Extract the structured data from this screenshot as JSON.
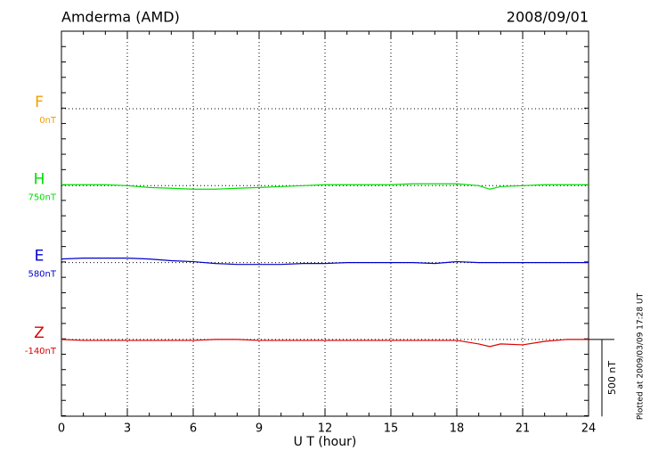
{
  "chart_data": {
    "type": "stacked-traces",
    "title": "Amderma (AMD)",
    "date": "2008/09/01",
    "x_label": "U T (hour)",
    "note": "Plotted at 2009/03/09 17:28 UT",
    "xlim": [
      0,
      24
    ],
    "xticks": [
      0,
      3,
      6,
      9,
      12,
      15,
      18,
      21,
      24
    ],
    "grid": true,
    "scale_bar": {
      "value": 500,
      "label": "500 nT"
    },
    "x": [
      0,
      1,
      2,
      3,
      4,
      5,
      6,
      7,
      8,
      9,
      10,
      11,
      12,
      13,
      14,
      15,
      16,
      17,
      18,
      19,
      19.5,
      20,
      21,
      22,
      23,
      24
    ],
    "series": [
      {
        "name": "F",
        "color": "#f0a000",
        "baseline": {
          "value": 0,
          "label": "0nT"
        },
        "values": [
          null,
          null,
          null,
          null,
          null,
          null,
          null,
          null,
          null,
          null,
          null,
          null,
          null,
          null,
          null,
          null,
          null,
          null,
          null,
          null,
          null,
          null,
          null,
          null,
          null,
          null
        ]
      },
      {
        "name": "H",
        "color": "#00dd00",
        "baseline": {
          "value": 750,
          "label": "750nT"
        },
        "values": [
          756,
          756,
          756,
          750,
          738,
          733,
          727,
          727,
          733,
          738,
          744,
          750,
          756,
          756,
          756,
          756,
          762,
          762,
          762,
          750,
          727,
          744,
          750,
          756,
          756,
          756
        ]
      },
      {
        "name": "E",
        "color": "#0000cc",
        "baseline": {
          "value": 580,
          "label": "580nT"
        },
        "values": [
          603,
          609,
          609,
          609,
          603,
          592,
          586,
          574,
          568,
          568,
          568,
          574,
          574,
          580,
          580,
          580,
          580,
          574,
          586,
          580,
          580,
          580,
          580,
          580,
          580,
          580
        ]
      },
      {
        "name": "Z",
        "color": "#dd0000",
        "baseline": {
          "value": -140,
          "label": "-140nT"
        },
        "values": [
          -140,
          -146,
          -146,
          -146,
          -146,
          -146,
          -146,
          -140,
          -140,
          -146,
          -146,
          -146,
          -146,
          -146,
          -146,
          -146,
          -146,
          -146,
          -146,
          -169,
          -186,
          -169,
          -175,
          -152,
          -140,
          -140
        ]
      }
    ]
  }
}
